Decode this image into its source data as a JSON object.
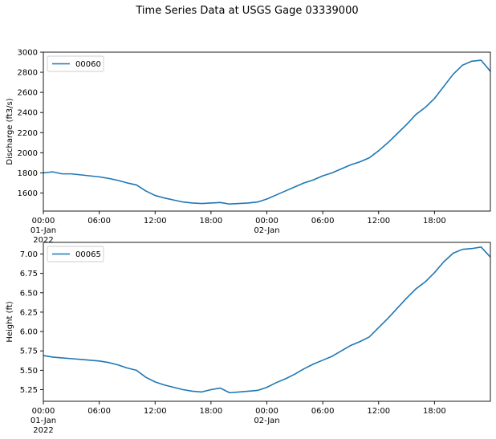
{
  "figure": {
    "title": "Time Series Data at USGS Gage 03339000"
  },
  "colors": {
    "line": "#1f77b4",
    "axis": "#000000",
    "background": "#ffffff"
  },
  "x_axis": {
    "range": [
      "2022-01-01 00:00",
      "2022-01-02 24:00"
    ],
    "ticks": [
      {
        "t": "2022-01-01 00:00",
        "label": "00:00",
        "sublabel": "01-Jan",
        "year": "2022"
      },
      {
        "t": "2022-01-01 06:00",
        "label": "06:00",
        "sublabel": "",
        "year": ""
      },
      {
        "t": "2022-01-01 12:00",
        "label": "12:00",
        "sublabel": "",
        "year": ""
      },
      {
        "t": "2022-01-01 18:00",
        "label": "18:00",
        "sublabel": "",
        "year": ""
      },
      {
        "t": "2022-01-02 00:00",
        "label": "00:00",
        "sublabel": "02-Jan",
        "year": ""
      },
      {
        "t": "2022-01-02 06:00",
        "label": "06:00",
        "sublabel": "",
        "year": ""
      },
      {
        "t": "2022-01-02 12:00",
        "label": "12:00",
        "sublabel": "",
        "year": ""
      },
      {
        "t": "2022-01-02 18:00",
        "label": "18:00",
        "sublabel": "",
        "year": ""
      }
    ]
  },
  "chart_data": [
    {
      "type": "line",
      "title": "",
      "xlabel": "",
      "ylabel": "Discharge (ft3/s)",
      "ylim": [
        1420,
        3000
      ],
      "yticks": [
        1600,
        1800,
        2000,
        2200,
        2400,
        2600,
        2800,
        3000
      ],
      "ytick_labels": [
        "1600",
        "1800",
        "2000",
        "2200",
        "2400",
        "2600",
        "2800",
        "3000"
      ],
      "grid": false,
      "legend": "upper-left",
      "series": [
        {
          "name": "00060",
          "x": [
            "2022-01-01 00:00",
            "2022-01-01 01:00",
            "2022-01-01 02:00",
            "2022-01-01 03:00",
            "2022-01-01 04:00",
            "2022-01-01 05:00",
            "2022-01-01 06:00",
            "2022-01-01 07:00",
            "2022-01-01 08:00",
            "2022-01-01 09:00",
            "2022-01-01 10:00",
            "2022-01-01 11:00",
            "2022-01-01 12:00",
            "2022-01-01 13:00",
            "2022-01-01 14:00",
            "2022-01-01 15:00",
            "2022-01-01 16:00",
            "2022-01-01 17:00",
            "2022-01-01 18:00",
            "2022-01-01 19:00",
            "2022-01-01 20:00",
            "2022-01-01 21:00",
            "2022-01-01 22:00",
            "2022-01-01 23:00",
            "2022-01-02 00:00",
            "2022-01-02 01:00",
            "2022-01-02 02:00",
            "2022-01-02 03:00",
            "2022-01-02 04:00",
            "2022-01-02 05:00",
            "2022-01-02 06:00",
            "2022-01-02 07:00",
            "2022-01-02 08:00",
            "2022-01-02 09:00",
            "2022-01-02 10:00",
            "2022-01-02 11:00",
            "2022-01-02 12:00",
            "2022-01-02 13:00",
            "2022-01-02 14:00",
            "2022-01-02 15:00",
            "2022-01-02 16:00",
            "2022-01-02 17:00",
            "2022-01-02 18:00",
            "2022-01-02 19:00",
            "2022-01-02 20:00",
            "2022-01-02 21:00",
            "2022-01-02 22:00",
            "2022-01-02 23:00",
            "2022-01-02 24:00"
          ],
          "values": [
            1800,
            1810,
            1790,
            1790,
            1780,
            1770,
            1760,
            1745,
            1725,
            1700,
            1680,
            1620,
            1575,
            1550,
            1530,
            1510,
            1500,
            1495,
            1500,
            1505,
            1490,
            1495,
            1500,
            1510,
            1540,
            1580,
            1620,
            1660,
            1700,
            1730,
            1770,
            1800,
            1840,
            1880,
            1910,
            1950,
            2020,
            2100,
            2190,
            2280,
            2380,
            2450,
            2540,
            2660,
            2780,
            2870,
            2910,
            2920,
            2810
          ]
        }
      ]
    },
    {
      "type": "line",
      "title": "",
      "xlabel": "",
      "ylabel": "Height (ft)",
      "ylim": [
        5.1,
        7.15
      ],
      "yticks": [
        5.25,
        5.5,
        5.75,
        6.0,
        6.25,
        6.5,
        6.75,
        7.0
      ],
      "ytick_labels": [
        "5.25",
        "5.50",
        "5.75",
        "6.00",
        "6.25",
        "6.50",
        "6.75",
        "7.00"
      ],
      "grid": false,
      "legend": "upper-left",
      "series": [
        {
          "name": "00065",
          "x": [
            "2022-01-01 00:00",
            "2022-01-01 01:00",
            "2022-01-01 02:00",
            "2022-01-01 03:00",
            "2022-01-01 04:00",
            "2022-01-01 05:00",
            "2022-01-01 06:00",
            "2022-01-01 07:00",
            "2022-01-01 08:00",
            "2022-01-01 09:00",
            "2022-01-01 10:00",
            "2022-01-01 11:00",
            "2022-01-01 12:00",
            "2022-01-01 13:00",
            "2022-01-01 14:00",
            "2022-01-01 15:00",
            "2022-01-01 16:00",
            "2022-01-01 17:00",
            "2022-01-01 18:00",
            "2022-01-01 19:00",
            "2022-01-01 20:00",
            "2022-01-01 21:00",
            "2022-01-01 22:00",
            "2022-01-01 23:00",
            "2022-01-02 00:00",
            "2022-01-02 01:00",
            "2022-01-02 02:00",
            "2022-01-02 03:00",
            "2022-01-02 04:00",
            "2022-01-02 05:00",
            "2022-01-02 06:00",
            "2022-01-02 07:00",
            "2022-01-02 08:00",
            "2022-01-02 09:00",
            "2022-01-02 10:00",
            "2022-01-02 11:00",
            "2022-01-02 12:00",
            "2022-01-02 13:00",
            "2022-01-02 14:00",
            "2022-01-02 15:00",
            "2022-01-02 16:00",
            "2022-01-02 17:00",
            "2022-01-02 18:00",
            "2022-01-02 19:00",
            "2022-01-02 20:00",
            "2022-01-02 21:00",
            "2022-01-02 22:00",
            "2022-01-02 23:00",
            "2022-01-02 24:00"
          ],
          "values": [
            5.69,
            5.67,
            5.66,
            5.65,
            5.64,
            5.63,
            5.62,
            5.6,
            5.57,
            5.53,
            5.5,
            5.41,
            5.35,
            5.31,
            5.28,
            5.25,
            5.23,
            5.22,
            5.25,
            5.27,
            5.21,
            5.22,
            5.23,
            5.24,
            5.28,
            5.34,
            5.39,
            5.45,
            5.52,
            5.58,
            5.63,
            5.68,
            5.75,
            5.82,
            5.87,
            5.93,
            6.05,
            6.17,
            6.3,
            6.43,
            6.55,
            6.64,
            6.76,
            6.9,
            7.01,
            7.06,
            7.07,
            7.09,
            6.96
          ]
        }
      ]
    }
  ]
}
